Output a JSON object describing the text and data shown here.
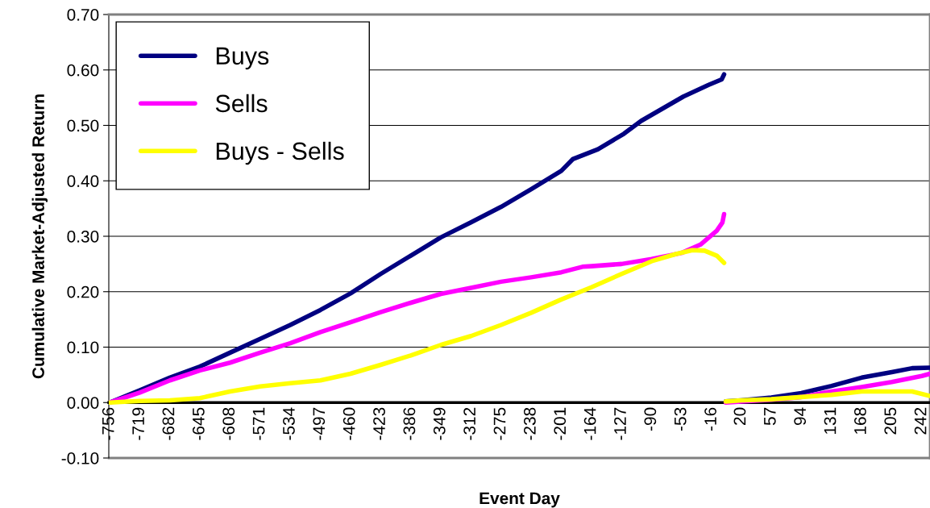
{
  "chart_data": {
    "type": "line",
    "xlabel": "Event Day",
    "ylabel": "Cumulative Market-Adjusted Return",
    "xlim": [
      -757,
      252
    ],
    "xticks": [
      -756,
      -719,
      -682,
      -645,
      -608,
      -571,
      -534,
      -497,
      -460,
      -423,
      -386,
      -349,
      -312,
      -275,
      -238,
      -201,
      -164,
      -127,
      -90,
      -53,
      -16,
      20,
      57,
      94,
      131,
      168,
      205,
      242
    ],
    "ylim": [
      -0.1,
      0.7
    ],
    "yticks": [
      {
        "value": -0.1,
        "label": "-0.10"
      },
      {
        "value": 0,
        "label": "0.00"
      },
      {
        "value": 0.1,
        "label": "0.10"
      },
      {
        "value": 0.2,
        "label": "0.20"
      },
      {
        "value": 0.3,
        "label": "0.30"
      },
      {
        "value": 0.4,
        "label": "0.40"
      },
      {
        "value": 0.5,
        "label": "0.50"
      },
      {
        "value": 0.6,
        "label": "0.60"
      },
      {
        "value": 0.7,
        "label": "0.70"
      }
    ],
    "grid": "y",
    "legend": "top left",
    "marker": "none",
    "line_style": "solid",
    "series": [
      {
        "name": "Buys",
        "color": "#000080",
        "x": [
          -756,
          -719,
          -682,
          -645,
          -608,
          -571,
          -534,
          -497,
          -460,
          -423,
          -386,
          -349,
          -312,
          -275,
          -238,
          -201,
          -187,
          -156,
          -124,
          -103,
          -51,
          -20,
          -4,
          -1,
          0,
          1,
          20,
          57,
          94,
          131,
          168,
          205,
          230,
          252
        ],
        "values": [
          0.0,
          0.022,
          0.045,
          0.065,
          0.09,
          0.115,
          0.14,
          0.167,
          0.197,
          0.232,
          0.265,
          0.298,
          0.325,
          0.353,
          0.385,
          0.418,
          0.439,
          0.457,
          0.485,
          0.508,
          0.552,
          0.573,
          0.583,
          0.592,
          null,
          0.002,
          0.004,
          0.009,
          0.017,
          0.03,
          0.045,
          0.055,
          0.062,
          0.063
        ]
      },
      {
        "name": "Sells",
        "color": "#ff00ff",
        "x": [
          -756,
          -719,
          -682,
          -645,
          -608,
          -571,
          -534,
          -497,
          -460,
          -423,
          -386,
          -349,
          -312,
          -275,
          -238,
          -201,
          -175,
          -164,
          -127,
          -90,
          -53,
          -30,
          -10,
          -3,
          -1,
          0,
          1,
          20,
          57,
          94,
          131,
          168,
          205,
          242,
          252
        ],
        "values": [
          0.0,
          0.018,
          0.04,
          0.058,
          0.072,
          0.09,
          0.107,
          0.127,
          0.145,
          0.163,
          0.18,
          0.196,
          0.207,
          0.218,
          0.226,
          0.235,
          0.245,
          0.246,
          0.25,
          0.259,
          0.27,
          0.285,
          0.31,
          0.325,
          0.34,
          null,
          0.0,
          0.002,
          0.005,
          0.01,
          0.02,
          0.028,
          0.037,
          0.048,
          0.052
        ]
      },
      {
        "name": "Buys - Sells",
        "color": "#ffff00",
        "x": [
          -756,
          -719,
          -682,
          -645,
          -608,
          -571,
          -534,
          -497,
          -460,
          -423,
          -386,
          -349,
          -312,
          -275,
          -238,
          -201,
          -164,
          -127,
          -90,
          -60,
          -40,
          -25,
          -10,
          -1,
          0,
          1,
          20,
          57,
          94,
          131,
          168,
          205,
          230,
          252
        ],
        "values": [
          0.0,
          0.003,
          0.004,
          0.008,
          0.02,
          0.029,
          0.035,
          0.04,
          0.052,
          0.068,
          0.085,
          0.104,
          0.12,
          0.14,
          0.162,
          0.186,
          0.208,
          0.232,
          0.255,
          0.268,
          0.275,
          0.274,
          0.265,
          0.252,
          null,
          0.002,
          0.004,
          0.006,
          0.01,
          0.014,
          0.02,
          0.02,
          0.02,
          0.012
        ]
      }
    ]
  }
}
